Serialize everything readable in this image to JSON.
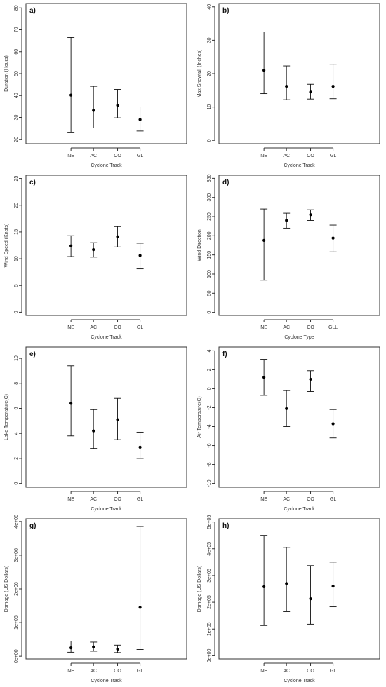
{
  "chart_data": [
    {
      "type": "scatter",
      "panel": "a)",
      "categories": [
        "NE",
        "AC",
        "CO",
        "GL"
      ],
      "mean": [
        40.2,
        33.2,
        35.5,
        29.0
      ],
      "lower": [
        23.0,
        25.2,
        29.8,
        23.8
      ],
      "upper": [
        66.5,
        44.2,
        42.8,
        34.8
      ],
      "xlabel": "Cyclone Track",
      "ylabel": "Duration (Hours)",
      "ylim": [
        18,
        82
      ],
      "yticks": [
        20,
        30,
        40,
        50,
        60,
        70,
        80
      ],
      "ytick_labels": [
        "20",
        "30",
        "40",
        "50",
        "60",
        "70",
        "80"
      ]
    },
    {
      "type": "scatter",
      "panel": "b)",
      "categories": [
        "NE",
        "AC",
        "CO",
        "GL"
      ],
      "mean": [
        21.0,
        16.2,
        14.5,
        16.2
      ],
      "lower": [
        14.0,
        12.2,
        12.4,
        12.5
      ],
      "upper": [
        32.5,
        22.3,
        16.8,
        22.8
      ],
      "xlabel": "Cyclone Track",
      "ylabel": "Max Snowfall (Inches)",
      "ylim": [
        -1,
        41
      ],
      "yticks": [
        0,
        10,
        20,
        30,
        40
      ],
      "ytick_labels": [
        "0",
        "10",
        "20",
        "30",
        "40"
      ]
    },
    {
      "type": "scatter",
      "panel": "c)",
      "categories": [
        "NE",
        "AC",
        "CO",
        "GL"
      ],
      "mean": [
        12.4,
        11.7,
        14.1,
        10.6
      ],
      "lower": [
        10.4,
        10.3,
        12.2,
        8.1
      ],
      "upper": [
        14.3,
        13.0,
        16.0,
        12.9
      ],
      "xlabel": "Cyclone Track",
      "ylabel": "Wind Speed (Knots)",
      "ylim": [
        -0.6,
        25.6
      ],
      "yticks": [
        0,
        5,
        10,
        15,
        20,
        25
      ],
      "ytick_labels": [
        "0",
        "5",
        "10",
        "15",
        "20",
        "25"
      ]
    },
    {
      "type": "scatter",
      "panel": "d)",
      "categories": [
        "NE",
        "AC",
        "CO",
        "GLL"
      ],
      "mean": [
        188,
        240,
        255,
        194
      ],
      "lower": [
        84,
        220,
        240,
        158
      ],
      "upper": [
        270,
        259,
        268,
        228
      ],
      "xlabel": "Cyclone Type",
      "ylabel": "Wind Direction",
      "ylim": [
        -8,
        358
      ],
      "yticks": [
        0,
        50,
        100,
        150,
        200,
        250,
        300,
        350
      ],
      "ytick_labels": [
        "0",
        "50",
        "100",
        "150",
        "200",
        "250",
        "300",
        "350"
      ]
    },
    {
      "type": "scatter",
      "panel": "e)",
      "categories": [
        "NE",
        "AC",
        "CO",
        "GL"
      ],
      "mean": [
        6.4,
        4.2,
        5.1,
        2.9
      ],
      "lower": [
        3.8,
        2.8,
        3.5,
        2.0
      ],
      "upper": [
        9.4,
        5.9,
        6.8,
        4.1
      ],
      "xlabel": "Cyclone Track",
      "ylabel": "Lake Temperature(C)",
      "ylim": [
        -0.3,
        10.9
      ],
      "yticks": [
        0,
        2,
        4,
        6,
        8,
        10
      ],
      "ytick_labels": [
        "0",
        "2",
        "4",
        "6",
        "8",
        "10"
      ]
    },
    {
      "type": "scatter",
      "panel": "f)",
      "categories": [
        "NE",
        "AC",
        "CO",
        "GL"
      ],
      "mean": [
        1.2,
        -2.1,
        1.0,
        -3.7
      ],
      "lower": [
        -0.7,
        -4.0,
        -0.3,
        -5.2
      ],
      "upper": [
        3.1,
        -0.2,
        1.9,
        -2.2
      ],
      "xlabel": "Cyclone Track",
      "ylabel": "Air Temperature(C)",
      "ylim": [
        -10.4,
        4.4
      ],
      "yticks": [
        -10,
        -8,
        -6,
        -4,
        -2,
        0,
        2,
        4
      ],
      "ytick_labels": [
        "-10",
        "-8",
        "-6",
        "-4",
        "-2",
        "0",
        "2",
        "4"
      ]
    },
    {
      "type": "scatter",
      "panel": "g)",
      "categories": [
        "NE",
        "AC",
        "CO",
        "GL"
      ],
      "mean": [
        250000,
        280000,
        210000,
        1450000
      ],
      "lower": [
        120000,
        150000,
        110000,
        200000
      ],
      "upper": [
        450000,
        420000,
        330000,
        3850000
      ],
      "xlabel": "Cyclone Track",
      "ylabel": "Damage (US Dollars)",
      "ylim": [
        -80000,
        4080000
      ],
      "yticks": [
        0,
        1000000,
        2000000,
        3000000,
        4000000
      ],
      "ytick_labels": [
        "0e+00",
        "1e+06",
        "2e+06",
        "3e+06",
        "4e+06"
      ]
    },
    {
      "type": "scatter",
      "panel": "h)",
      "categories": [
        "NE",
        "AC",
        "CO",
        "GL"
      ],
      "mean": [
        258000,
        270000,
        213000,
        260000
      ],
      "lower": [
        113000,
        165000,
        118000,
        183000
      ],
      "upper": [
        450000,
        405000,
        337000,
        350000
      ],
      "xlabel": "Cyclone Track",
      "ylabel": "Damage (US Dollars)",
      "ylim": [
        -12000,
        512000
      ],
      "yticks": [
        0,
        100000,
        200000,
        300000,
        400000,
        500000
      ],
      "ytick_labels": [
        "0e+00",
        "1e+05",
        "2e+05",
        "3e+05",
        "4e+05",
        "5e+05"
      ]
    }
  ]
}
